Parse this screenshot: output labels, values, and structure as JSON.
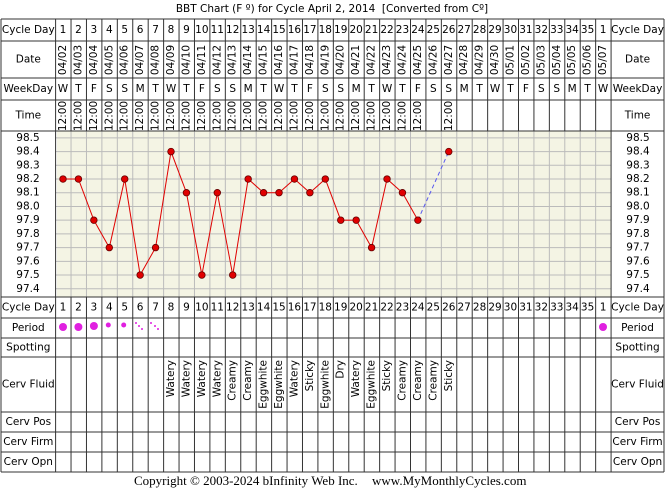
{
  "chart_data": {
    "type": "line",
    "title": "BBT Chart (F º) for Cycle April 2, 2014  [Converted from Cº]",
    "row_labels": [
      "Cycle Day",
      "Date",
      "WeekDay",
      "Time",
      "Cycle Day",
      "Period",
      "Spotting",
      "Cerv Fluid",
      "Cerv Pos",
      "Cerv Firm",
      "Cerv Opn"
    ],
    "categories": [
      1,
      2,
      3,
      4,
      5,
      6,
      7,
      8,
      9,
      10,
      11,
      12,
      13,
      14,
      15,
      16,
      17,
      18,
      19,
      20,
      21,
      22,
      23,
      24,
      25,
      26,
      27,
      28,
      29,
      30,
      31,
      32,
      33,
      34,
      35,
      1
    ],
    "dates": [
      "04/02",
      "04/03",
      "04/04",
      "04/05",
      "04/06",
      "04/07",
      "04/08",
      "04/09",
      "04/10",
      "04/11",
      "04/12",
      "04/13",
      "04/14",
      "04/15",
      "04/16",
      "04/17",
      "04/18",
      "04/19",
      "04/20",
      "04/21",
      "04/22",
      "04/23",
      "04/24",
      "04/25",
      "04/26",
      "04/27",
      "04/28",
      "04/29",
      "04/30",
      "05/01",
      "05/02",
      "05/03",
      "05/04",
      "05/05",
      "05/06",
      "05/07"
    ],
    "weekdays": [
      "W",
      "T",
      "F",
      "S",
      "S",
      "M",
      "T",
      "W",
      "T",
      "F",
      "S",
      "S",
      "M",
      "T",
      "W",
      "T",
      "F",
      "S",
      "S",
      "M",
      "T",
      "W",
      "T",
      "F",
      "S",
      "S",
      "M",
      "T",
      "W",
      "T",
      "F",
      "S",
      "S",
      "M",
      "T",
      "W"
    ],
    "times": [
      "12:00",
      "12:00",
      "12:00",
      "12:00",
      "12:00",
      "12:00",
      "12:00",
      "12:00",
      "12:00",
      "12:00",
      "12:00",
      "12:00",
      "12:00",
      "12:00",
      "12:00",
      "12:00",
      "12:00",
      "12:00",
      "12:00",
      "12:00",
      "12:00",
      "12:00",
      "12:00",
      "12:00",
      null,
      "12:00",
      null,
      null,
      null,
      null,
      null,
      null,
      null,
      null,
      null,
      null
    ],
    "series": [
      {
        "color": "#e00000",
        "values": [
          98.2,
          98.2,
          97.9,
          97.7,
          98.2,
          97.5,
          97.7,
          98.4,
          98.1,
          97.5,
          98.1,
          97.5,
          98.2,
          98.1,
          98.1,
          98.2,
          98.1,
          98.2,
          97.9,
          97.9,
          97.7,
          98.2,
          98.1,
          97.9,
          null,
          98.4,
          null,
          null,
          null,
          null,
          null,
          null,
          null,
          null,
          null,
          null
        ]
      }
    ],
    "gap_line_color": "#5a5aee",
    "cerv_fluid": [
      null,
      null,
      null,
      null,
      null,
      null,
      null,
      "Watery",
      "Watery",
      "Watery",
      "Watery",
      "Creamy",
      "Creamy",
      "Eggwhite",
      "Eggwhite",
      "Watery",
      "Sticky",
      "Eggwhite",
      "Dry",
      "Watery",
      "Eggwhite",
      "Sticky",
      "Creamy",
      "Creamy",
      "Creamy",
      "Sticky",
      null,
      null,
      null,
      null,
      null,
      null,
      null,
      null,
      null,
      null
    ],
    "ylim": [
      97.34,
      98.55
    ],
    "yticks": [
      97.4,
      97.5,
      97.6,
      97.7,
      97.8,
      97.9,
      {
        "value": 98,
        "label": "98.0"
      },
      98.1,
      98.2,
      98.3,
      98.4,
      98.5
    ],
    "grid": true,
    "footer": [
      "Copyright © 2003-2024 bInfinity Web Inc.",
      "www.MyMonthlyCycles.com"
    ]
  }
}
